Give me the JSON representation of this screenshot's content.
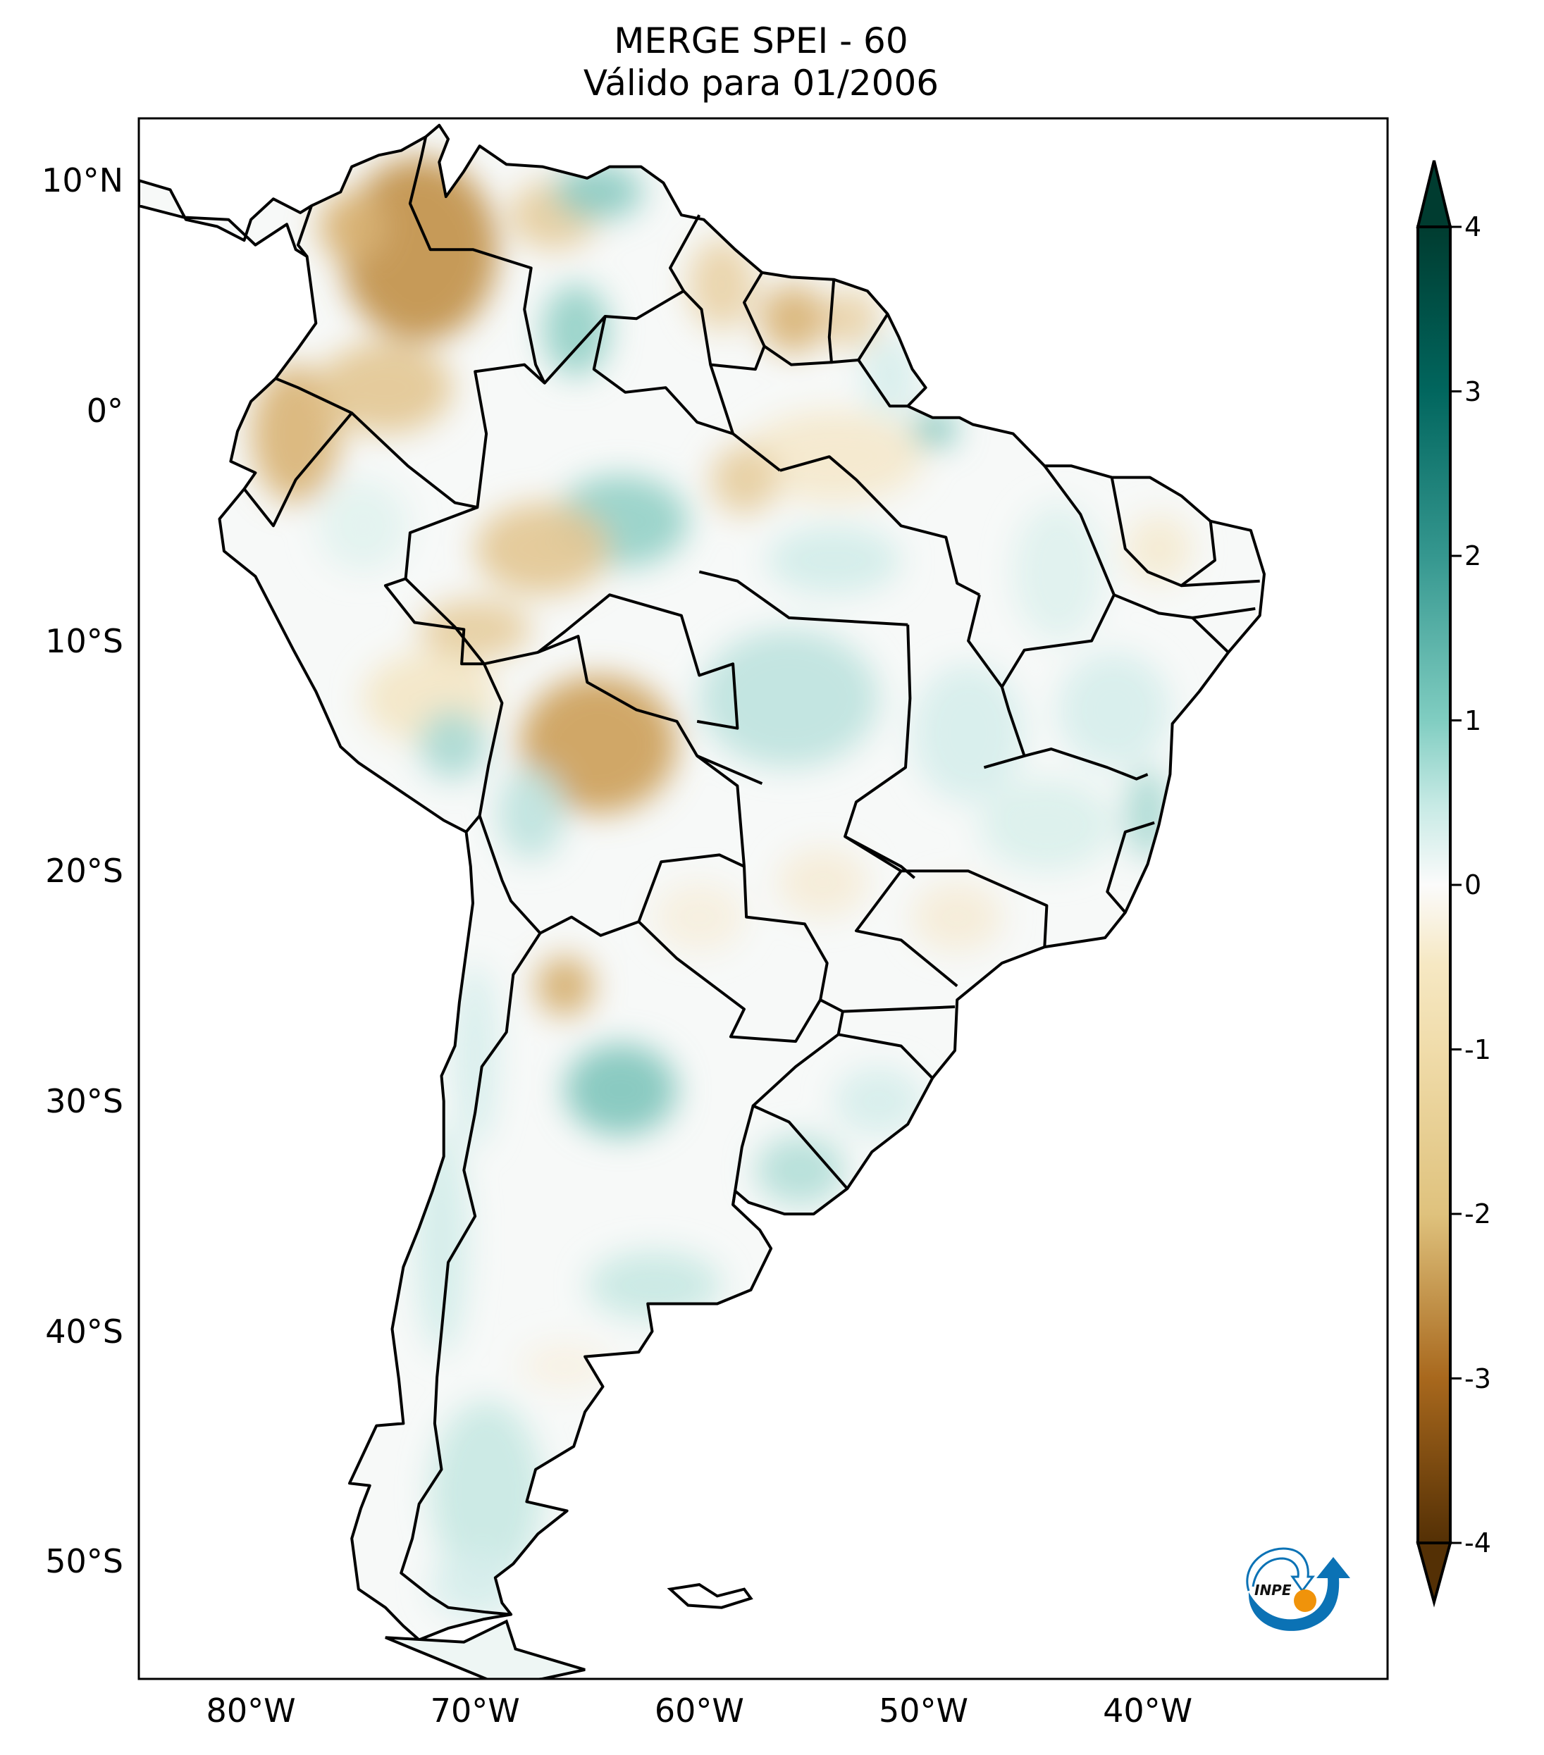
{
  "title": {
    "line1": "MERGE   SPEI - 60",
    "line2": "Válido para 01/2006"
  },
  "chart_data": {
    "type": "heatmap",
    "subtype": "geographic-map",
    "title": "MERGE   SPEI - 60",
    "subtitle": "Válido para 01/2006",
    "variable": "SPEI-60",
    "region": "South America",
    "xlim": [
      -85,
      -29.3
    ],
    "ylim": [
      -55.1,
      12.7
    ],
    "xticks": [
      -80,
      -70,
      -60,
      -50,
      -40
    ],
    "xtick_labels": [
      "80°W",
      "70°W",
      "60°W",
      "50°W",
      "40°W"
    ],
    "yticks": [
      10,
      0,
      -10,
      -20,
      -30,
      -40,
      -50
    ],
    "ytick_labels": [
      "10°N",
      "0°",
      "10°S",
      "20°S",
      "30°S",
      "40°S",
      "50°S"
    ],
    "colorbar": {
      "min": -4,
      "max": 4,
      "ticks": [
        4,
        3,
        2,
        1,
        0,
        -1,
        -2,
        -3,
        -4
      ],
      "tick_labels": [
        "4",
        "3",
        "2",
        "1",
        "0",
        "-1",
        "-2",
        "-3",
        "-4"
      ],
      "extend": "both",
      "colormap": "BrBG",
      "colors": {
        "-4": "#543005",
        "-3": "#9a5a12",
        "-2": "#d2a862",
        "-1": "#f3e6c6",
        "0": "#fcfcfc",
        "1": "#d2ede9",
        "2": "#6cbcb1",
        "3": "#147a6e",
        "4": "#003c30"
      }
    },
    "anomalies": [
      {
        "name": "northern Colombia / Venezuela Andes",
        "lon": -72.5,
        "lat": 7.0,
        "rx": 3.5,
        "ry": 4.0,
        "value": -2.3
      },
      {
        "name": "Panama/Colombia coast",
        "lon": -75.5,
        "lat": 8.0,
        "rx": 1.5,
        "ry": 1.5,
        "value": -1.8
      },
      {
        "name": "Ecuador",
        "lon": -78.0,
        "lat": -1.0,
        "rx": 2.0,
        "ry": 3.0,
        "value": -1.8
      },
      {
        "name": "southern Colombia",
        "lon": -74.0,
        "lat": 1.0,
        "rx": 3.0,
        "ry": 2.0,
        "value": -1.5
      },
      {
        "name": "Venezuela llanos east",
        "lon": -66.5,
        "lat": 8.5,
        "rx": 2.0,
        "ry": 1.5,
        "value": -1.4
      },
      {
        "name": "Venezuela northeast",
        "lon": -64.5,
        "lat": 9.5,
        "rx": 2.0,
        "ry": 1.2,
        "value": 1.7
      },
      {
        "name": "Venezuela Amazonas",
        "lon": -65.5,
        "lat": 3.5,
        "rx": 1.5,
        "ry": 2.0,
        "value": 1.6
      },
      {
        "name": "Guyana",
        "lon": -59.0,
        "lat": 5.5,
        "rx": 1.5,
        "ry": 2.0,
        "value": -1.3
      },
      {
        "name": "Suriname",
        "lon": -55.8,
        "lat": 4.0,
        "rx": 1.5,
        "ry": 1.5,
        "value": -1.8
      },
      {
        "name": "French Guiana",
        "lon": -53.2,
        "lat": 4.0,
        "rx": 1.2,
        "ry": 1.3,
        "value": -1.3
      },
      {
        "name": "Amapa",
        "lon": -51.5,
        "lat": 1.5,
        "rx": 1.2,
        "ry": 1.8,
        "value": 0.9
      },
      {
        "name": "Marajo",
        "lon": -49.5,
        "lat": -0.8,
        "rx": 1.0,
        "ry": 0.8,
        "value": 1.8
      },
      {
        "name": "central Amazonas",
        "lon": -63.5,
        "lat": -4.8,
        "rx": 3.0,
        "ry": 2.0,
        "value": 1.6
      },
      {
        "name": "Amazonas west",
        "lon": -67.0,
        "lat": -6.0,
        "rx": 3.0,
        "ry": 2.0,
        "value": -1.5
      },
      {
        "name": "Para north",
        "lon": -54.0,
        "lat": -2.0,
        "rx": 4.0,
        "ry": 2.0,
        "value": -0.9
      },
      {
        "name": "Para central",
        "lon": -58.0,
        "lat": -3.0,
        "rx": 1.5,
        "ry": 1.5,
        "value": -1.4
      },
      {
        "name": "Para south",
        "lon": -54.0,
        "lat": -6.5,
        "rx": 3.0,
        "ry": 1.5,
        "value": 1.0
      },
      {
        "name": "Acre",
        "lon": -70.0,
        "lat": -9.5,
        "rx": 2.5,
        "ry": 1.3,
        "value": -1.4
      },
      {
        "name": "Peru Amazon",
        "lon": -75.0,
        "lat": -5.0,
        "rx": 2.0,
        "ry": 2.0,
        "value": 0.6
      },
      {
        "name": "Peru south",
        "lon": -72.0,
        "lat": -12.5,
        "rx": 3.0,
        "ry": 2.0,
        "value": -1.0
      },
      {
        "name": "Peru southeast",
        "lon": -71.0,
        "lat": -14.5,
        "rx": 1.5,
        "ry": 1.5,
        "value": 1.4
      },
      {
        "name": "Bolivia lowlands",
        "lon": -64.5,
        "lat": -14.5,
        "rx": 3.5,
        "ry": 3.0,
        "value": -2.1
      },
      {
        "name": "Mato Grosso",
        "lon": -56.0,
        "lat": -12.5,
        "rx": 4.0,
        "ry": 3.0,
        "value": 1.2
      },
      {
        "name": "Tocantins / Goias",
        "lon": -48.0,
        "lat": -14.0,
        "rx": 2.5,
        "ry": 3.0,
        "value": 0.9
      },
      {
        "name": "Bahia",
        "lon": -41.5,
        "lat": -13.0,
        "rx": 2.5,
        "ry": 2.5,
        "value": 0.9
      },
      {
        "name": "Minas Gerais",
        "lon": -44.5,
        "lat": -18.0,
        "rx": 3.0,
        "ry": 2.0,
        "value": 0.8
      },
      {
        "name": "Espirito Santo",
        "lon": -40.0,
        "lat": -17.5,
        "rx": 1.0,
        "ry": 2.0,
        "value": 1.4
      },
      {
        "name": "Piaui / Maranhao",
        "lon": -44.0,
        "lat": -7.0,
        "rx": 2.0,
        "ry": 3.0,
        "value": 0.7
      },
      {
        "name": "Ceara",
        "lon": -39.5,
        "lat": -6.0,
        "rx": 1.5,
        "ry": 1.5,
        "value": -0.8
      },
      {
        "name": "Mato Grosso do Sul",
        "lon": -54.5,
        "lat": -20.5,
        "rx": 2.0,
        "ry": 1.5,
        "value": -0.7
      },
      {
        "name": "Sao Paulo",
        "lon": -48.5,
        "lat": -22.0,
        "rx": 2.0,
        "ry": 1.5,
        "value": -0.7
      },
      {
        "name": "Paraguay Chaco",
        "lon": -60.0,
        "lat": -22.0,
        "rx": 2.0,
        "ry": 1.5,
        "value": -0.6
      },
      {
        "name": "NW Argentina",
        "lon": -66.0,
        "lat": -25.0,
        "rx": 1.3,
        "ry": 1.3,
        "value": -1.9
      },
      {
        "name": "Chaco / Cordoba",
        "lon": -63.5,
        "lat": -29.5,
        "rx": 2.5,
        "ry": 2.0,
        "value": 1.8
      },
      {
        "name": "Uruguay",
        "lon": -55.5,
        "lat": -33.0,
        "rx": 2.0,
        "ry": 1.5,
        "value": 1.3
      },
      {
        "name": "Rio Grande do Sul",
        "lon": -52.0,
        "lat": -30.0,
        "rx": 2.0,
        "ry": 1.5,
        "value": 0.9
      },
      {
        "name": "Buenos Aires south",
        "lon": -62.0,
        "lat": -38.0,
        "rx": 3.0,
        "ry": 1.5,
        "value": 1.1
      },
      {
        "name": "Chile central",
        "lon": -71.5,
        "lat": -36.0,
        "rx": 1.2,
        "ry": 5.0,
        "value": 1.0
      },
      {
        "name": "Chile north",
        "lon": -70.0,
        "lat": -28.0,
        "rx": 1.0,
        "ry": 4.0,
        "value": 0.9
      },
      {
        "name": "Patagonia",
        "lon": -69.5,
        "lat": -47.0,
        "rx": 2.5,
        "ry": 4.0,
        "value": 1.1
      },
      {
        "name": "Patagonia south",
        "lon": -70.0,
        "lat": -51.0,
        "rx": 2.0,
        "ry": 1.5,
        "value": 0.9
      },
      {
        "name": "Rio Negro",
        "lon": -66.0,
        "lat": -41.5,
        "rx": 2.0,
        "ry": 1.0,
        "value": -0.5
      },
      {
        "name": "Bolivia altiplano",
        "lon": -67.5,
        "lat": -17.5,
        "rx": 1.5,
        "ry": 2.0,
        "value": 1.2
      }
    ]
  },
  "logo": {
    "text": "INPE"
  }
}
